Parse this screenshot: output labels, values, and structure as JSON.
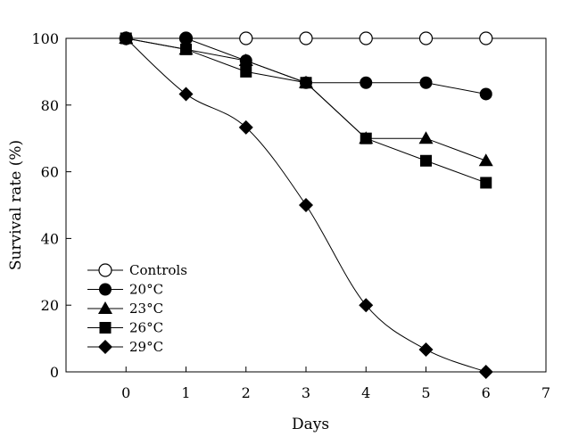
{
  "chart_data": {
    "type": "line",
    "title": "",
    "xlabel": "Days",
    "ylabel": "Survival rate (%)",
    "xlim": [
      -1,
      7
    ],
    "ylim": [
      0,
      100
    ],
    "xticks": [
      0,
      1,
      2,
      3,
      4,
      5,
      6,
      7
    ],
    "yticks": [
      0,
      20,
      40,
      60,
      80,
      100
    ],
    "grid": false,
    "legend_position": "bottom-left",
    "x": [
      0,
      1,
      2,
      3,
      4,
      5,
      6
    ],
    "series": [
      {
        "name": "Controls",
        "marker": "circle-open",
        "values": [
          100,
          100,
          100,
          100,
          100,
          100,
          100
        ]
      },
      {
        "name": "20°C",
        "marker": "circle",
        "values": [
          100,
          100,
          93.3,
          86.7,
          86.7,
          86.7,
          83.3
        ]
      },
      {
        "name": "23°C",
        "marker": "triangle",
        "values": [
          100,
          96.7,
          93.3,
          86.7,
          70,
          70,
          63.3
        ]
      },
      {
        "name": "26°C",
        "marker": "square",
        "values": [
          100,
          96.7,
          90,
          86.7,
          70,
          63.3,
          56.7
        ]
      },
      {
        "name": "29°C",
        "marker": "diamond",
        "values": [
          100,
          83.3,
          73.3,
          50,
          20,
          6.7,
          0
        ]
      }
    ]
  }
}
